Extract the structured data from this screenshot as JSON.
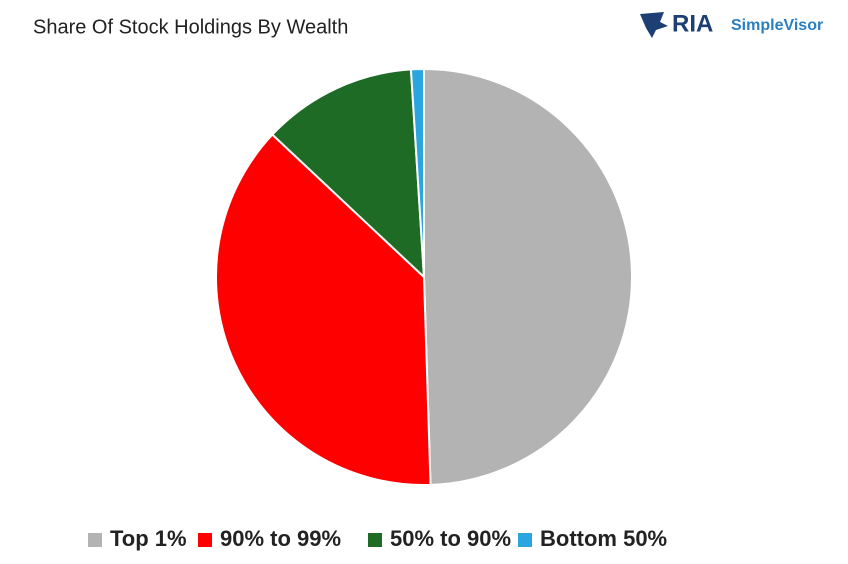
{
  "chart_data": {
    "type": "pie",
    "title": "Share Of Stock Holdings By Wealth",
    "brand": {
      "name": "RIA",
      "product": "SimpleVisor"
    },
    "categories": [
      "Top 1%",
      "90% to 99%",
      "50% to 90%",
      "Bottom 50%"
    ],
    "values": [
      49.5,
      37.5,
      12,
      1
    ],
    "colors": [
      "#b3b3b3",
      "#ff0000",
      "#1e6b25",
      "#2aa5df"
    ],
    "legend": "bottom"
  }
}
